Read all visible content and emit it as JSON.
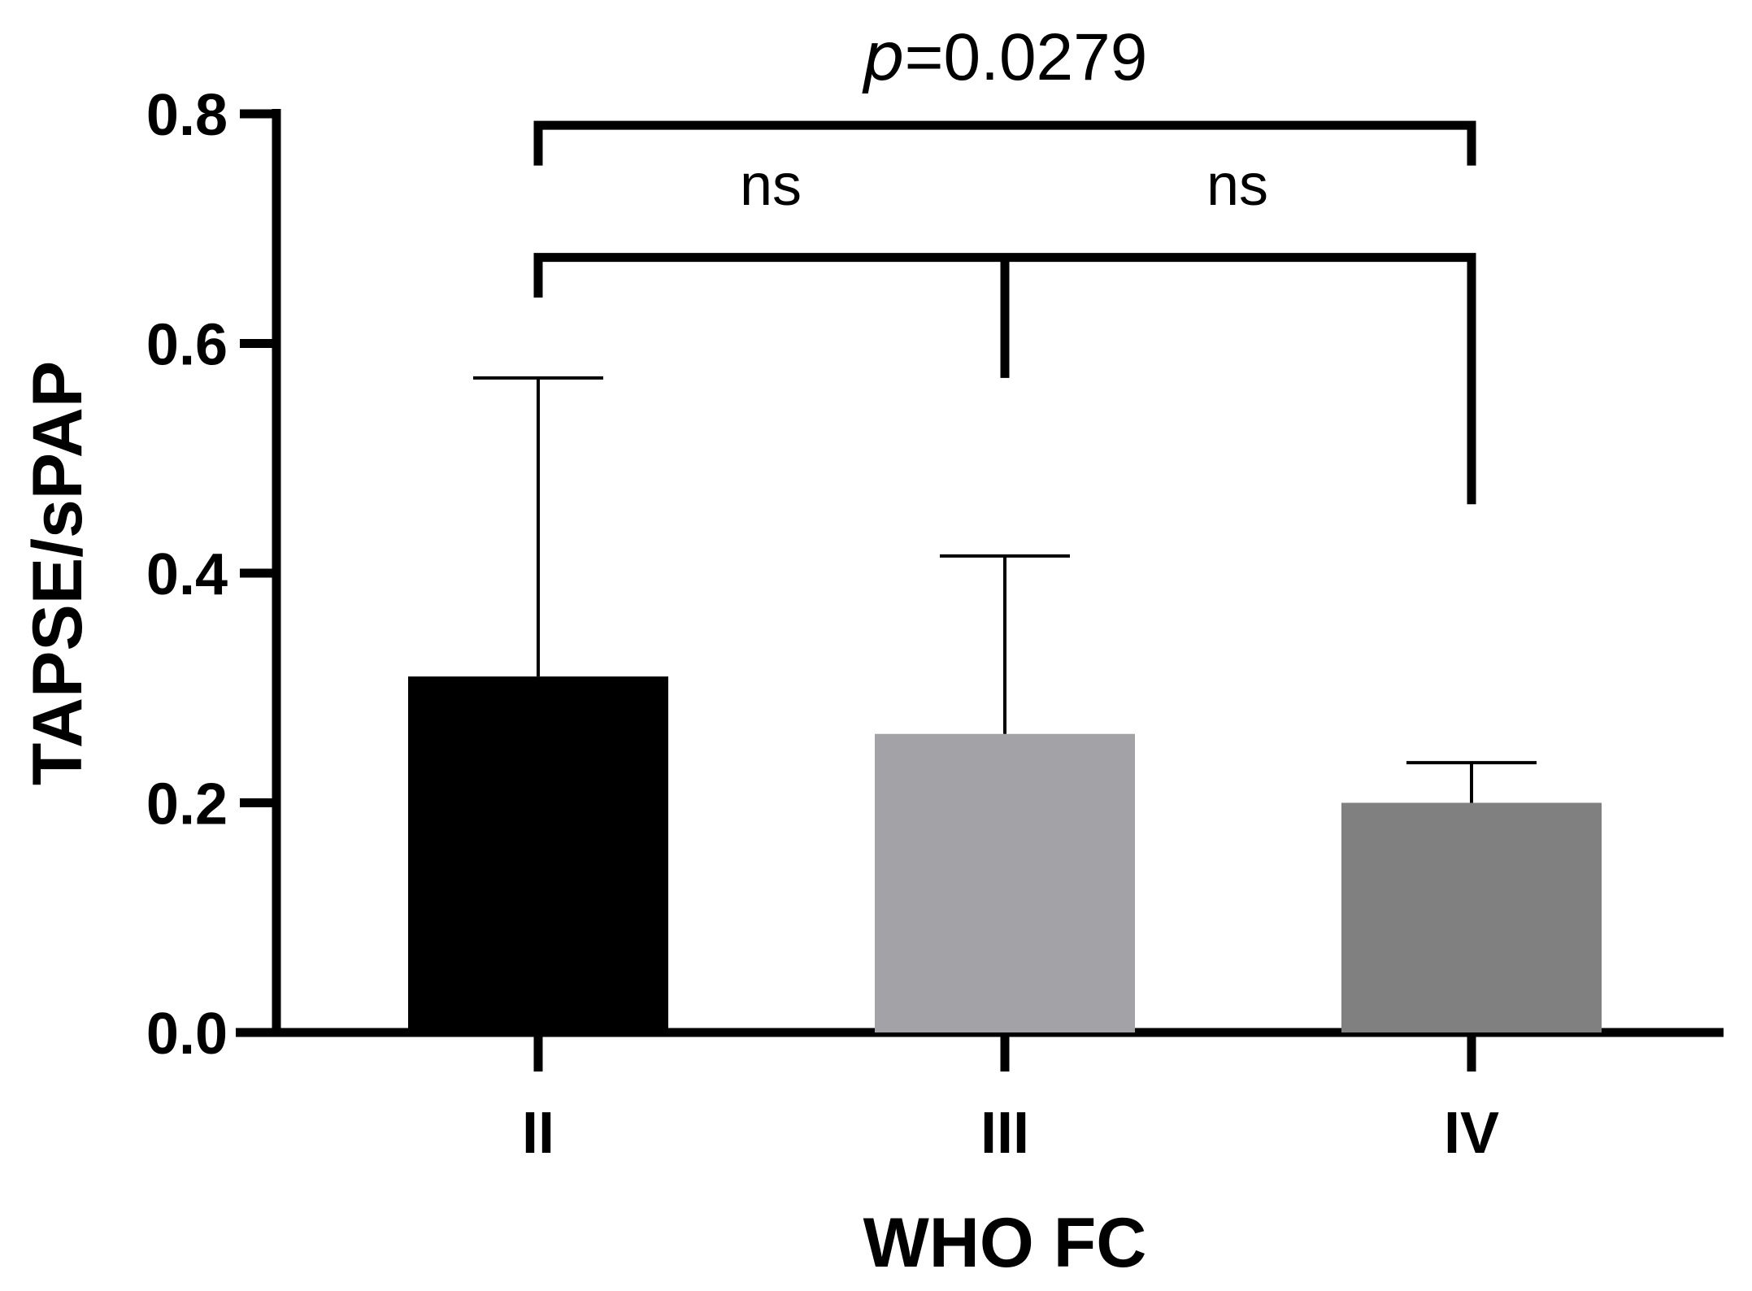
{
  "chart_data": {
    "type": "bar",
    "title": "",
    "xlabel": "WHO FC",
    "ylabel": "TAPSE/sPAP",
    "ylim": [
      0,
      0.8
    ],
    "yticks": [
      "0.0",
      "0.2",
      "0.4",
      "0.6",
      "0.8"
    ],
    "ytick_values": [
      0,
      0.2,
      0.4,
      0.6,
      0.8
    ],
    "categories": [
      "II",
      "III",
      "IV"
    ],
    "values": [
      0.31,
      0.26,
      0.2
    ],
    "error_upper": [
      0.57,
      0.415,
      0.235
    ],
    "colors": [
      "#000000",
      "#a3a3a7",
      "#808080"
    ],
    "grid": false,
    "annotations": {
      "overall": {
        "prefix": "p",
        "value": "=0.0279",
        "from": 0,
        "to": 2,
        "level": 0.79,
        "drop_left": 0.755,
        "drop_right": 0.755
      },
      "pairwise_left": {
        "label": "ns"
      },
      "pairwise_right": {
        "label": "ns"
      },
      "pairwise": {
        "level": 0.675,
        "drop_left": 0.64,
        "drop_mid": 0.57,
        "drop_right": 0.46
      }
    }
  }
}
